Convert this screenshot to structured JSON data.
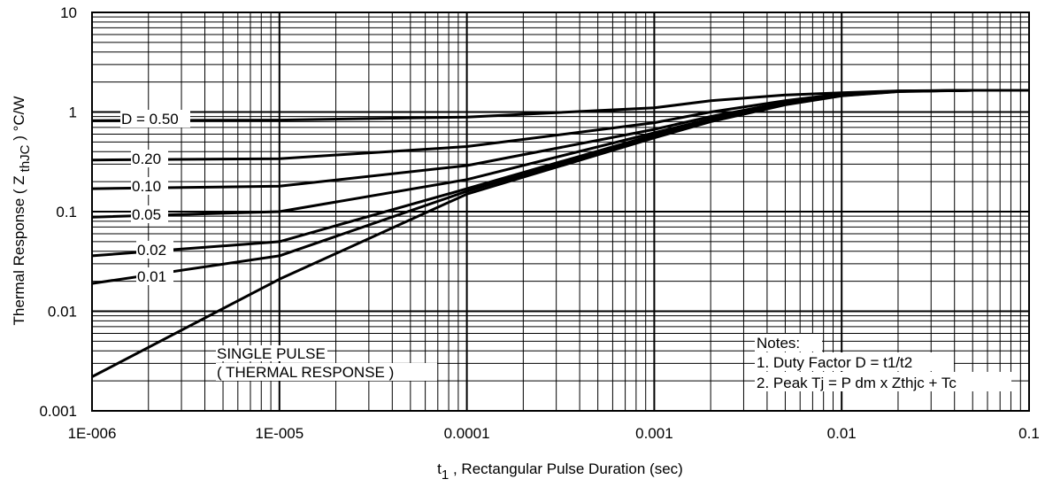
{
  "chart_data": {
    "type": "line",
    "xlabel_main": "t",
    "xlabel_sub": "1",
    "xlabel_rest": " , Rectangular Pulse Duration (sec)",
    "ylabel_pre": "Thermal Response ( Z",
    "ylabel_sub": "thJC",
    "ylabel_post": " ) °C/W",
    "x_scale": "log",
    "y_scale": "log",
    "xlim": [
      1e-06,
      0.1
    ],
    "ylim": [
      0.001,
      10
    ],
    "grid": true,
    "x_ticks": [
      {
        "value": 1e-06,
        "label": "1E-006"
      },
      {
        "value": 1e-05,
        "label": "1E-005"
      },
      {
        "value": 0.0001,
        "label": "0.0001"
      },
      {
        "value": 0.001,
        "label": "0.001"
      },
      {
        "value": 0.01,
        "label": "0.01"
      },
      {
        "value": 0.1,
        "label": "0.1"
      }
    ],
    "y_ticks": [
      {
        "value": 0.001,
        "label": "0.001"
      },
      {
        "value": 0.01,
        "label": "0.01"
      },
      {
        "value": 0.1,
        "label": "0.1"
      },
      {
        "value": 1,
        "label": "1"
      },
      {
        "value": 10,
        "label": "10"
      }
    ],
    "series": [
      {
        "name": "D = 0.50",
        "x": [
          1e-06,
          1e-05,
          0.0001,
          0.001,
          0.002,
          0.005,
          0.01,
          0.02,
          0.05,
          0.1
        ],
        "y": [
          0.82,
          0.83,
          0.89,
          1.1,
          1.3,
          1.48,
          1.56,
          1.63,
          1.65,
          1.65
        ]
      },
      {
        "name": "0.20",
        "x": [
          1e-06,
          1e-05,
          0.0001,
          0.001,
          0.002,
          0.005,
          0.01,
          0.02,
          0.05,
          0.1
        ],
        "y": [
          0.33,
          0.34,
          0.45,
          0.78,
          1.0,
          1.3,
          1.52,
          1.62,
          1.65,
          1.65
        ]
      },
      {
        "name": "0.10",
        "x": [
          1e-06,
          1e-05,
          0.0001,
          0.001,
          0.002,
          0.005,
          0.01,
          0.02,
          0.05,
          0.1
        ],
        "y": [
          0.17,
          0.18,
          0.29,
          0.67,
          0.9,
          1.25,
          1.5,
          1.62,
          1.65,
          1.65
        ]
      },
      {
        "name": "0.05",
        "x": [
          1e-06,
          1e-05,
          0.0001,
          0.001,
          0.002,
          0.005,
          0.01,
          0.02,
          0.05,
          0.1
        ],
        "y": [
          0.088,
          0.1,
          0.21,
          0.62,
          0.85,
          1.22,
          1.48,
          1.61,
          1.65,
          1.65
        ]
      },
      {
        "name": "0.02",
        "x": [
          1e-06,
          1e-05,
          0.0001,
          0.001,
          0.002,
          0.005,
          0.01,
          0.02,
          0.05,
          0.1
        ],
        "y": [
          0.036,
          0.05,
          0.17,
          0.59,
          0.83,
          1.2,
          1.47,
          1.61,
          1.65,
          1.65
        ]
      },
      {
        "name": "0.01",
        "x": [
          1e-06,
          1e-05,
          0.0001,
          0.001,
          0.002,
          0.005,
          0.01,
          0.02,
          0.05,
          0.1
        ],
        "y": [
          0.019,
          0.036,
          0.16,
          0.57,
          0.82,
          1.19,
          1.46,
          1.61,
          1.65,
          1.65
        ]
      },
      {
        "name": "SINGLE PULSE",
        "x": [
          1e-06,
          1e-05,
          0.0001,
          0.001,
          0.002,
          0.005,
          0.01,
          0.02,
          0.05,
          0.1
        ],
        "y": [
          0.0022,
          0.021,
          0.15,
          0.55,
          0.8,
          1.18,
          1.45,
          1.6,
          1.65,
          1.65
        ]
      }
    ],
    "series_labels": [
      "D = 0.50",
      "0.20",
      "0.10",
      "0.05",
      "0.02",
      "0.01"
    ],
    "single_pulse_label_1": "SINGLE PULSE",
    "single_pulse_label_2": "( THERMAL RESPONSE )",
    "notes": [
      "Notes:",
      "1. Duty Factor D = t1/t2",
      "2. Peak Tj = P dm x Zthjc + Tc"
    ]
  }
}
